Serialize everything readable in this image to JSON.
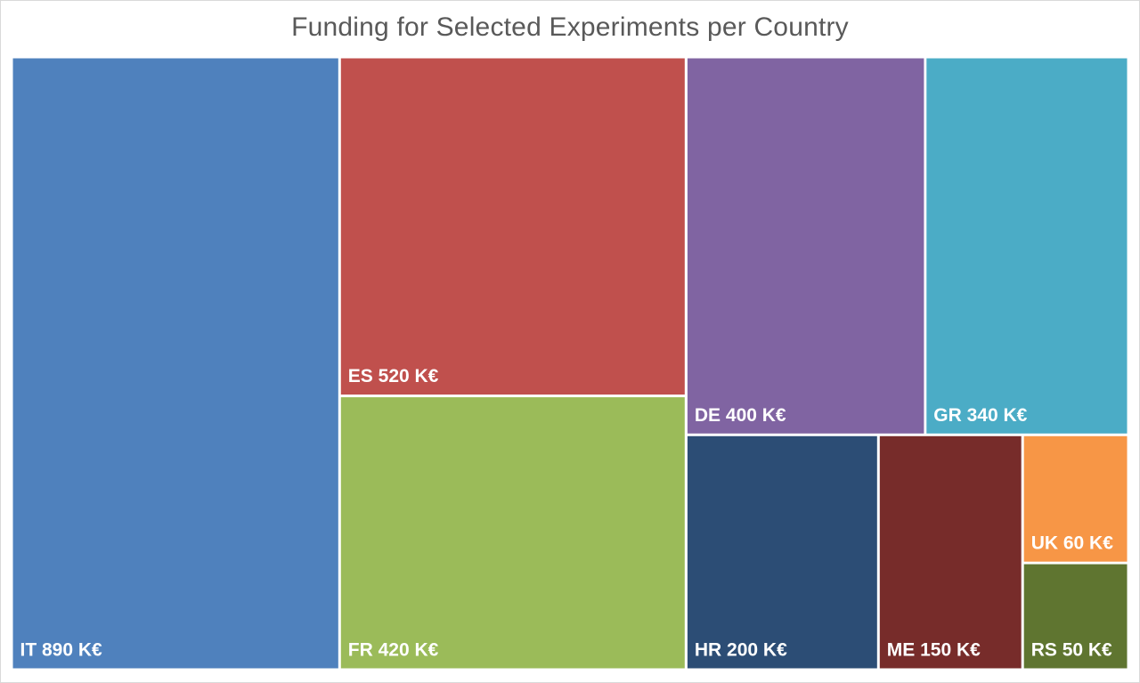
{
  "chart_data": {
    "type": "treemap",
    "title": "Funding for Selected Experiments per Country",
    "unit": "K€",
    "items": [
      {
        "code": "IT",
        "value": 890,
        "label": "IT 890 K€",
        "color": "#4F81BD"
      },
      {
        "code": "ES",
        "value": 520,
        "label": "ES 520 K€",
        "color": "#C0504D"
      },
      {
        "code": "FR",
        "value": 420,
        "label": "FR 420 K€",
        "color": "#9BBB59"
      },
      {
        "code": "DE",
        "value": 400,
        "label": "DE 400 K€",
        "color": "#8064A2"
      },
      {
        "code": "GR",
        "value": 340,
        "label": "GR 340 K€",
        "color": "#4BACC6"
      },
      {
        "code": "HR",
        "value": 200,
        "label": "HR 200 K€",
        "color": "#2C4D75"
      },
      {
        "code": "ME",
        "value": 150,
        "label": "ME 150 K€",
        "color": "#772C2A"
      },
      {
        "code": "UK",
        "value": 60,
        "label": "UK 60 K€",
        "color": "#F79646"
      },
      {
        "code": "RS",
        "value": 50,
        "label": "RS 50 K€",
        "color": "#5F7530"
      }
    ]
  }
}
